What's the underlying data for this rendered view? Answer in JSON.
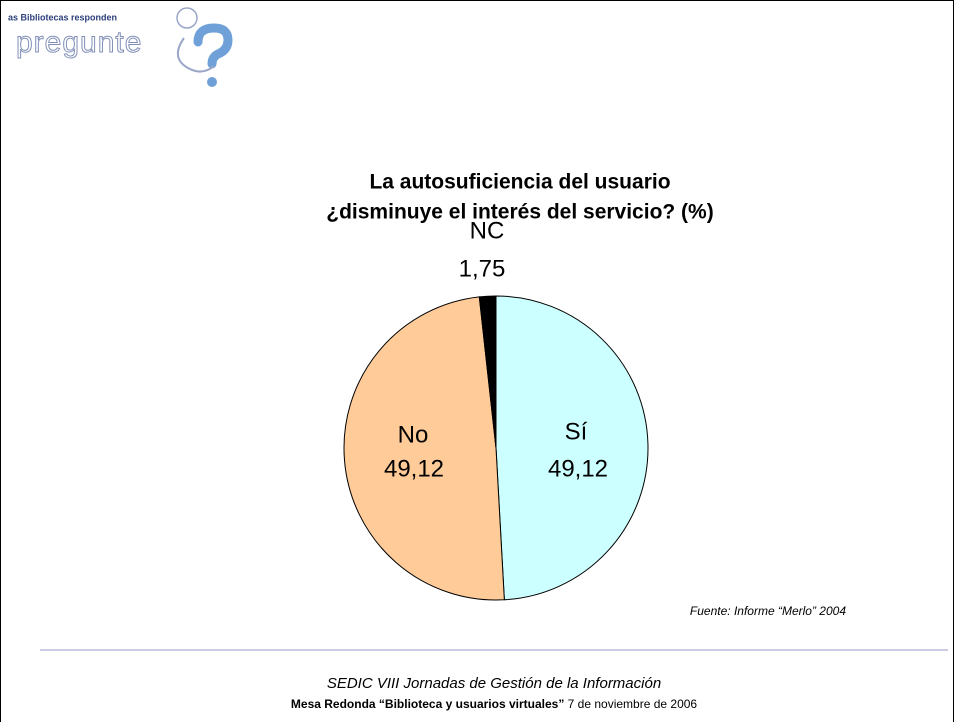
{
  "logo": {
    "tagline": "as Bibliotecas responden",
    "name": "pregunte"
  },
  "chart_data": {
    "type": "pie",
    "title": [
      "La autosuficiencia del usuario",
      "¿disminuye el interés del servicio? (%)"
    ],
    "categories": [
      "Sí",
      "No",
      "NC"
    ],
    "values": [
      49.12,
      49.12,
      1.75
    ],
    "value_labels": [
      "49,12",
      "49,12",
      "1,75"
    ],
    "colors": [
      "#ccffff",
      "#ffcc99",
      "#000000"
    ]
  },
  "source": "Fuente:  Informe “Merlo” 2004",
  "footer": {
    "line1": "SEDIC VIII Jornadas de Gestión de la Información",
    "line2_bold": "Mesa Redonda “Biblioteca y usuarios virtuales”",
    "line2_rest": " 7 de noviembre de 2006"
  }
}
